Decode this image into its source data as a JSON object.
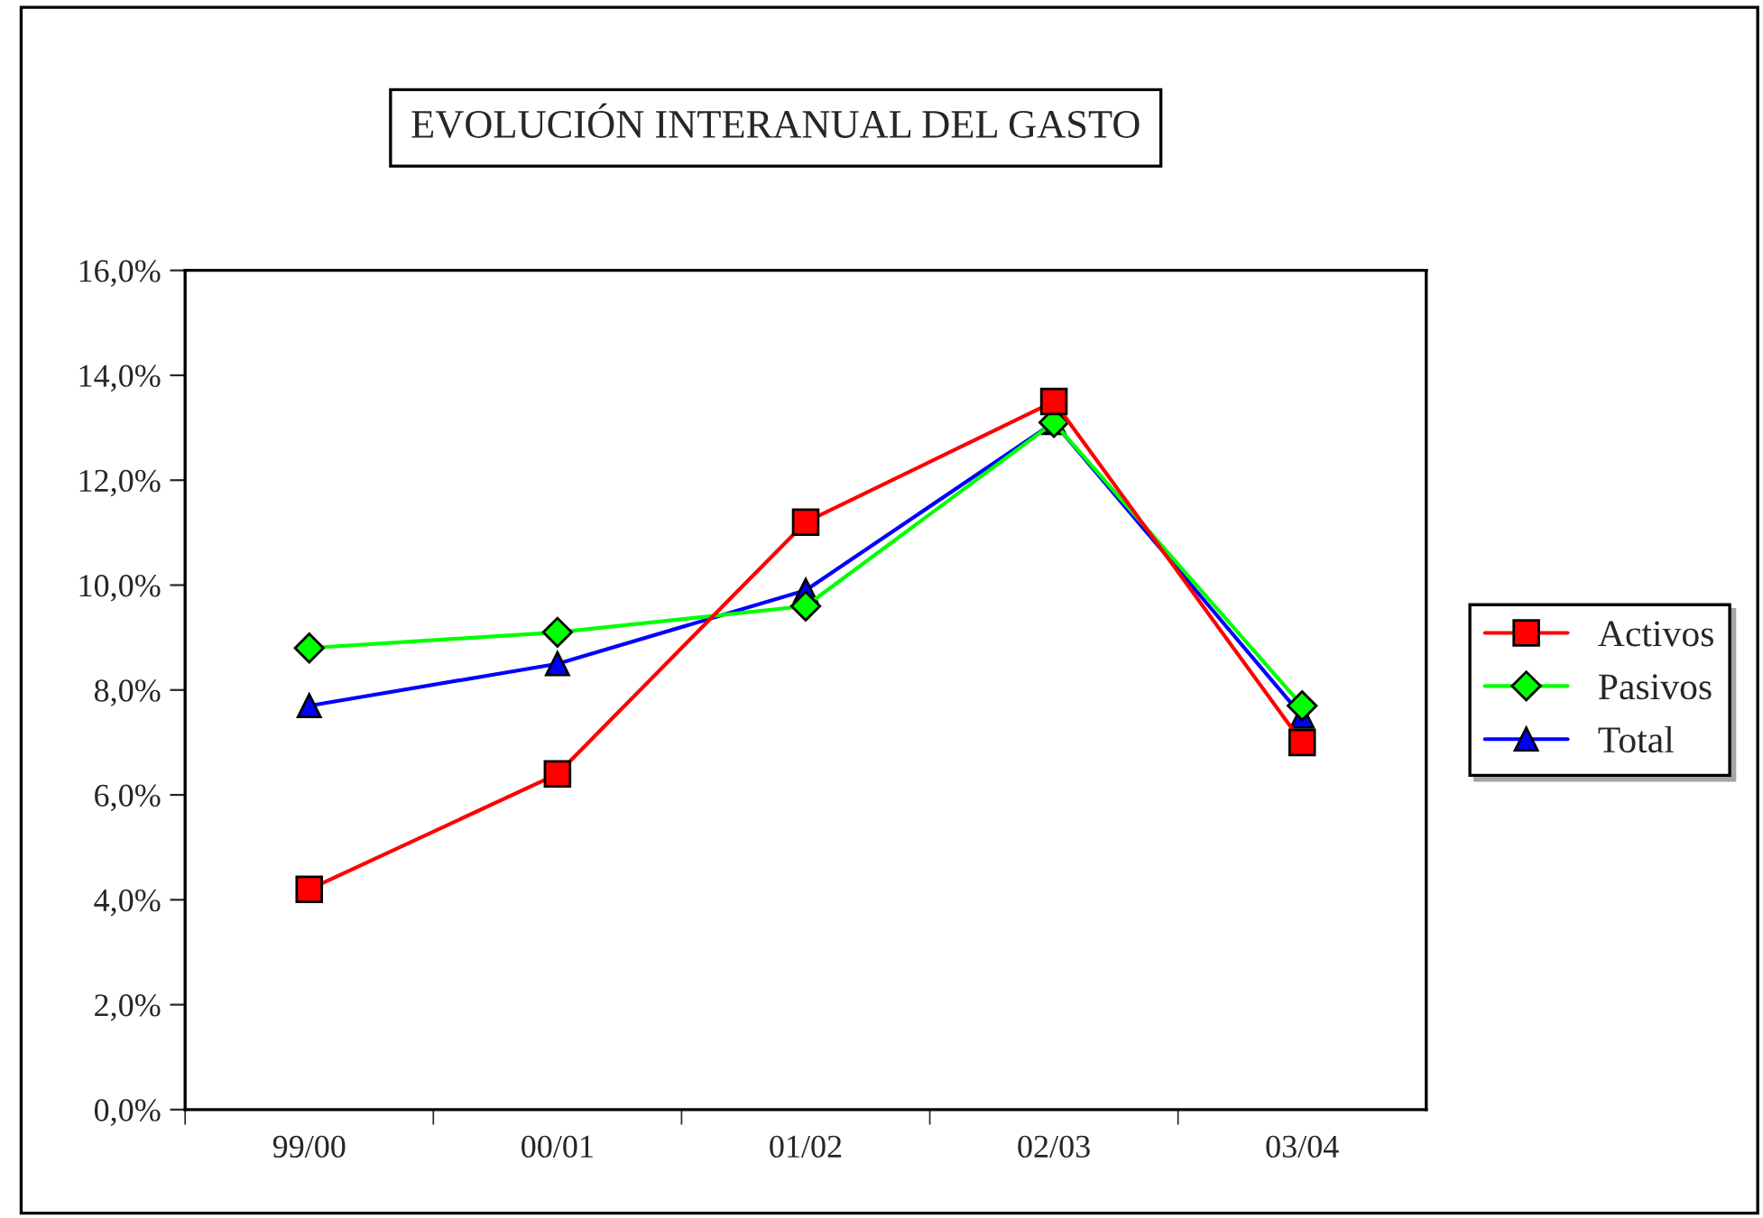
{
  "chart_data": {
    "type": "line",
    "title": "EVOLUCIÓN INTERANUAL DEL GASTO",
    "categories": [
      "99/00",
      "00/01",
      "01/02",
      "02/03",
      "03/04"
    ],
    "series": [
      {
        "name": "Activos",
        "color": "#ff0000",
        "marker": "square",
        "values": [
          4.2,
          6.4,
          11.2,
          13.5,
          7.0
        ]
      },
      {
        "name": "Pasivos",
        "color": "#00ff00",
        "marker": "diamond",
        "values": [
          8.8,
          9.1,
          9.6,
          13.1,
          7.7
        ]
      },
      {
        "name": "Total",
        "color": "#0000ff",
        "marker": "triangle",
        "values": [
          7.7,
          8.5,
          9.9,
          13.1,
          7.5
        ]
      }
    ],
    "ylim": [
      0,
      16
    ],
    "yticks": [
      {
        "value": 0,
        "label": "0,0%"
      },
      {
        "value": 2,
        "label": "2,0%"
      },
      {
        "value": 4,
        "label": "4,0%"
      },
      {
        "value": 6,
        "label": "6,0%"
      },
      {
        "value": 8,
        "label": "8,0%"
      },
      {
        "value": 10,
        "label": "10,0%"
      },
      {
        "value": 12,
        "label": "12,0%"
      },
      {
        "value": 14,
        "label": "14,0%"
      },
      {
        "value": 16,
        "label": "16,0%"
      }
    ],
    "grid": false,
    "legend": "right",
    "line_style": "solid"
  }
}
